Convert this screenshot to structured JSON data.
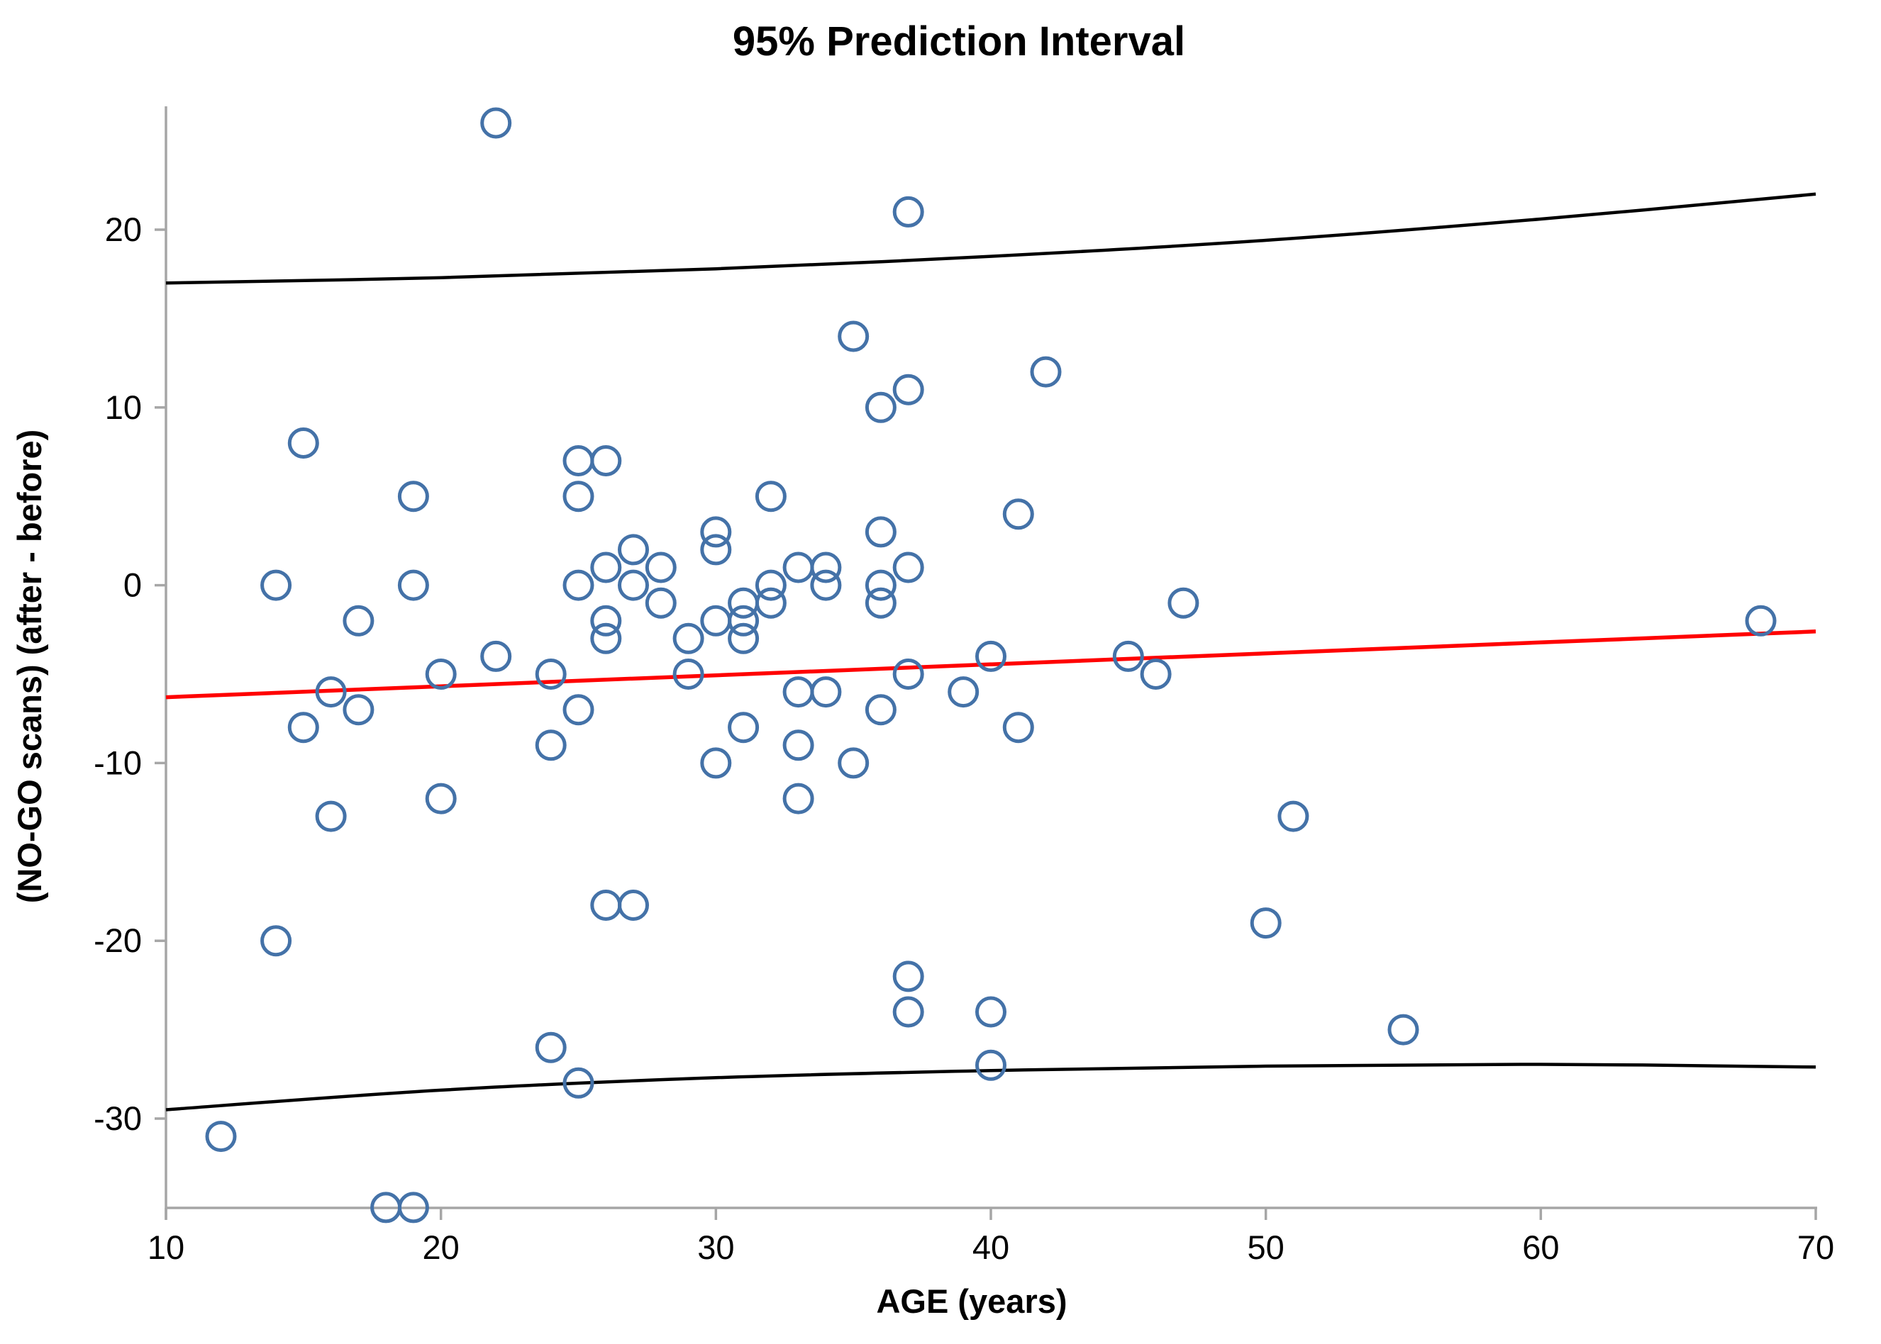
{
  "title": "95% Prediction Interval",
  "chart_data": {
    "type": "scatter",
    "title": "95% Prediction Interval",
    "xlabel": "AGE (years)",
    "ylabel": "(NO-GO scans) (after - before)",
    "xlim": [
      10,
      70
    ],
    "ylim": [
      -35,
      27
    ],
    "x_ticks": [
      10,
      20,
      30,
      40,
      50,
      60,
      70
    ],
    "y_ticks": [
      20,
      10,
      0,
      -10,
      -20,
      -30
    ],
    "grid": false,
    "legend_position": "none",
    "marker_color": "#4472a8",
    "regression_color": "#ff0000",
    "interval_color": "#000000",
    "axis_color": "#a6a6a6",
    "points": [
      [
        12,
        -31
      ],
      [
        14,
        0
      ],
      [
        14,
        -20
      ],
      [
        15,
        8
      ],
      [
        15,
        -8
      ],
      [
        16,
        -6
      ],
      [
        16,
        -13
      ],
      [
        17,
        -2
      ],
      [
        17,
        -7
      ],
      [
        18,
        -35
      ],
      [
        19,
        5
      ],
      [
        19,
        0
      ],
      [
        19,
        -35
      ],
      [
        20,
        -5
      ],
      [
        20,
        -12
      ],
      [
        22,
        26
      ],
      [
        22,
        -4
      ],
      [
        24,
        -5
      ],
      [
        24,
        -9
      ],
      [
        24,
        -26
      ],
      [
        25,
        7
      ],
      [
        25,
        5
      ],
      [
        25,
        0
      ],
      [
        25,
        -7
      ],
      [
        25,
        -28
      ],
      [
        26,
        7
      ],
      [
        26,
        1
      ],
      [
        26,
        -2
      ],
      [
        26,
        -3
      ],
      [
        26,
        -18
      ],
      [
        27,
        2
      ],
      [
        27,
        0
      ],
      [
        27,
        -18
      ],
      [
        28,
        1
      ],
      [
        28,
        -1
      ],
      [
        29,
        -3
      ],
      [
        29,
        -5
      ],
      [
        30,
        3
      ],
      [
        30,
        2
      ],
      [
        30,
        -2
      ],
      [
        30,
        -10
      ],
      [
        31,
        -1
      ],
      [
        31,
        -2
      ],
      [
        31,
        -3
      ],
      [
        31,
        -8
      ],
      [
        32,
        5
      ],
      [
        32,
        0
      ],
      [
        32,
        -1
      ],
      [
        33,
        1
      ],
      [
        33,
        -6
      ],
      [
        33,
        -9
      ],
      [
        33,
        -12
      ],
      [
        34,
        1
      ],
      [
        34,
        0
      ],
      [
        34,
        -6
      ],
      [
        35,
        14
      ],
      [
        35,
        -10
      ],
      [
        36,
        10
      ],
      [
        36,
        3
      ],
      [
        36,
        0
      ],
      [
        36,
        -1
      ],
      [
        36,
        -7
      ],
      [
        37,
        21
      ],
      [
        37,
        11
      ],
      [
        37,
        1
      ],
      [
        37,
        -5
      ],
      [
        37,
        -22
      ],
      [
        37,
        -24
      ],
      [
        39,
        -6
      ],
      [
        40,
        -4
      ],
      [
        40,
        -24
      ],
      [
        40,
        -27
      ],
      [
        41,
        4
      ],
      [
        41,
        -8
      ],
      [
        42,
        12
      ],
      [
        45,
        -4
      ],
      [
        46,
        -5
      ],
      [
        47,
        -1
      ],
      [
        50,
        -19
      ],
      [
        51,
        -13
      ],
      [
        55,
        -25
      ],
      [
        68,
        -2
      ]
    ],
    "regression_line": {
      "x": [
        10,
        70
      ],
      "y": [
        -6.3,
        -2.6
      ]
    },
    "upper_interval": {
      "x": [
        10,
        20,
        30,
        40,
        50,
        60,
        70
      ],
      "y": [
        17.0,
        17.3,
        17.8,
        18.5,
        19.4,
        20.6,
        22.0
      ]
    },
    "lower_interval": {
      "x": [
        10,
        20,
        30,
        40,
        50,
        60,
        70
      ],
      "y": [
        -29.5,
        -28.4,
        -27.7,
        -27.3,
        -27.05,
        -26.95,
        -27.1
      ]
    }
  }
}
